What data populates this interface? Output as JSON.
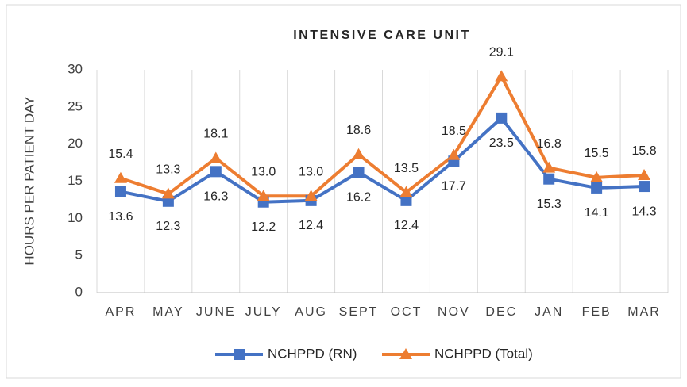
{
  "chart_data": {
    "type": "line",
    "title": "INTENSIVE CARE UNIT",
    "y_label": "HOURS PER PATIENT DAY",
    "categories": [
      "APR",
      "MAY",
      "JUNE",
      "JULY",
      "AUG",
      "SEPT",
      "OCT",
      "NOV",
      "DEC",
      "JAN",
      "FEB",
      "MAR"
    ],
    "series": [
      {
        "name": "NCHPPD (RN)",
        "color": "#4472c4",
        "marker": "square",
        "label_position": "below",
        "values": [
          13.6,
          12.3,
          16.3,
          12.2,
          12.4,
          16.2,
          12.4,
          17.7,
          23.5,
          15.3,
          14.1,
          14.3
        ],
        "value_labels": [
          "13.6",
          "12.3",
          "16.3",
          "12.2",
          "12.4",
          "16.2",
          "12.4",
          "17.7",
          "23.5",
          "15.3",
          "14.1",
          "14.3"
        ]
      },
      {
        "name": "NCHPPD (Total)",
        "color": "#ed7d31",
        "marker": "triangle",
        "label_position": "above",
        "values": [
          15.4,
          13.3,
          18.1,
          13.0,
          13.0,
          18.6,
          13.5,
          18.5,
          29.1,
          16.8,
          15.5,
          15.8
        ],
        "value_labels": [
          "15.4",
          "13.3",
          "18.1",
          "13.0",
          "13.0",
          "18.6",
          "13.5",
          "18.5",
          "29.1",
          "16.8",
          "15.5",
          "15.8"
        ]
      }
    ],
    "ylim": [
      0,
      30
    ],
    "yticks": [
      0,
      5,
      10,
      15,
      20,
      25,
      30
    ],
    "grid": "x",
    "legend": "bottom"
  }
}
